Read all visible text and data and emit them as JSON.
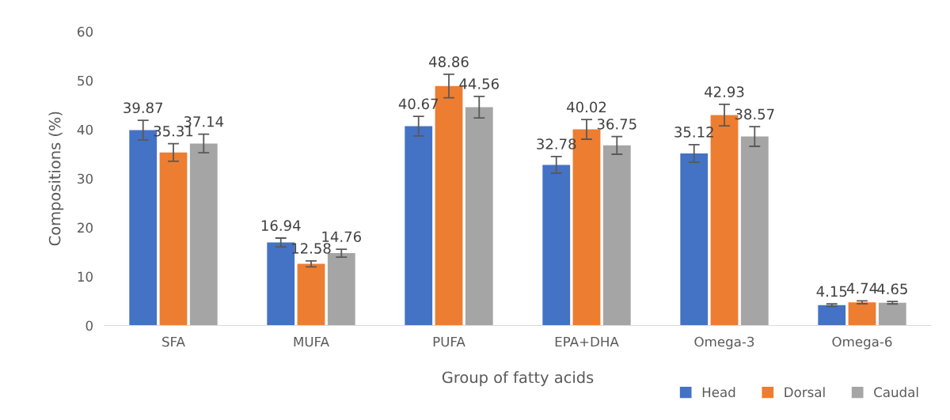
{
  "chart_data": {
    "type": "bar",
    "xlabel": "Group of fatty acids",
    "ylabel": "Compositions (%)",
    "categories": [
      "SFA",
      "MUFA",
      "PUFA",
      "EPA+DHA",
      "Omega-3",
      "Omega-6"
    ],
    "series": [
      {
        "name": "Head",
        "color": "#4472c4",
        "values": [
          39.87,
          16.94,
          40.67,
          32.78,
          35.12,
          4.15
        ],
        "errors": [
          2,
          0.9,
          2,
          1.7,
          1.8,
          0.25
        ]
      },
      {
        "name": "Dorsal",
        "color": "#ed7d31",
        "values": [
          35.31,
          12.58,
          48.86,
          40.02,
          42.93,
          4.74
        ],
        "errors": [
          1.8,
          0.6,
          2.4,
          2,
          2.2,
          0.3
        ]
      },
      {
        "name": "Caudal",
        "color": "#a5a5a5",
        "values": [
          37.14,
          14.76,
          44.56,
          36.75,
          38.57,
          4.65
        ],
        "errors": [
          1.9,
          0.8,
          2.2,
          1.8,
          2,
          0.25
        ]
      }
    ],
    "ylim": [
      0,
      60
    ],
    "yticks": [
      0,
      10,
      20,
      30,
      40,
      50,
      60
    ],
    "grid": false,
    "legend": "bottom right",
    "data_labels": true
  }
}
